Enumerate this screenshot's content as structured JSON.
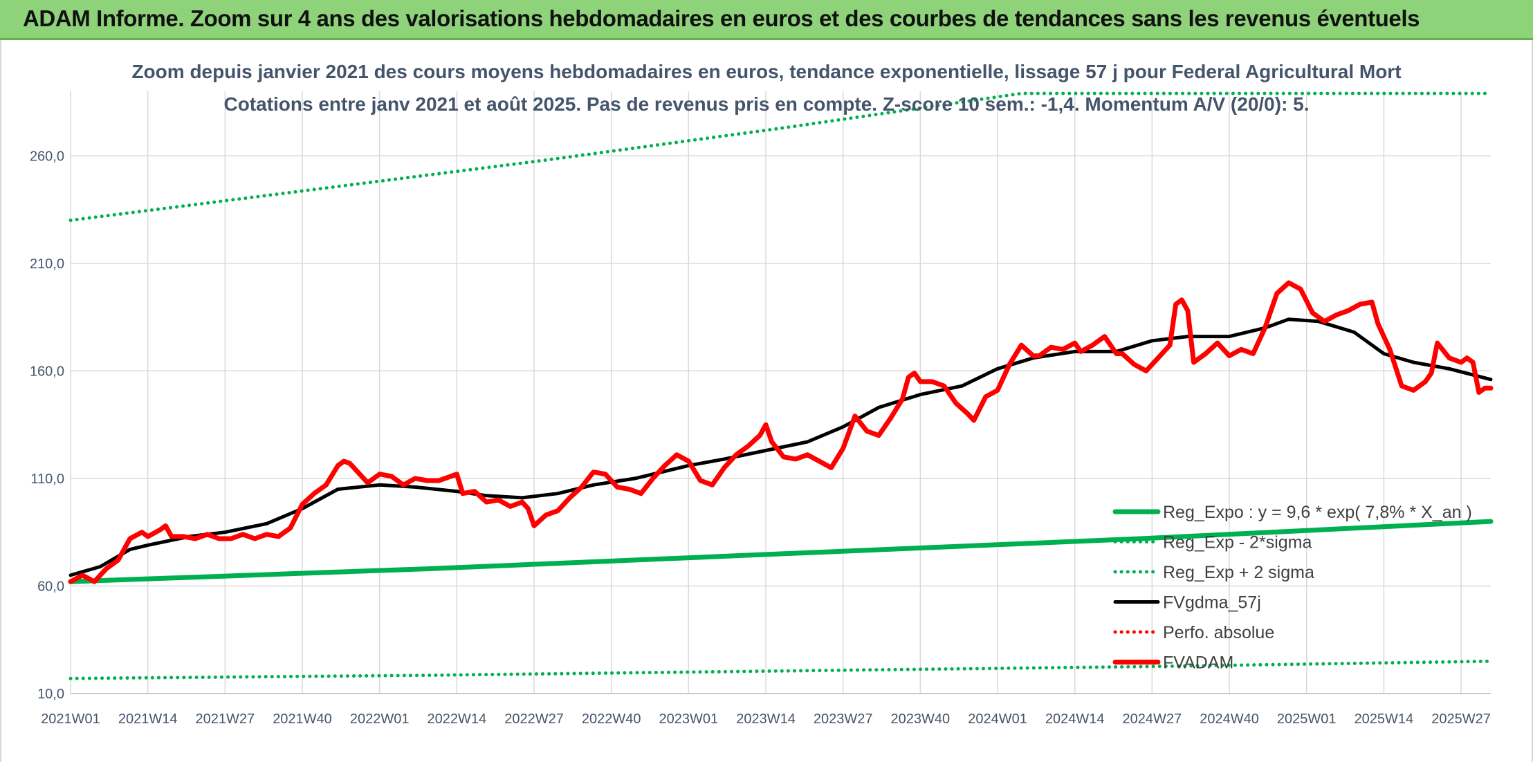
{
  "header": {
    "title": "ADAM Informe. Zoom sur 4 ans des valorisations hebdomadaires en euros et des courbes de tendances sans les revenus éventuels"
  },
  "chart_data": {
    "type": "line",
    "title": "Zoom depuis janvier 2021 des cours moyens hebdomadaires en euros, tendance exponentielle, lissage 57 j pour Federal Agricultural Mort",
    "subtitle": "Cotations entre janv 2021 et août 2025. Pas de revenus pris en compte. Z-score 10 sem.: -1,4. Momentum A/V (20/0): 5.",
    "xlabel": "",
    "ylabel": "",
    "ylim": [
      10,
      290
    ],
    "yticks": [
      "10,0",
      "60,0",
      "110,0",
      "160,0",
      "210,0",
      "260,0"
    ],
    "ytick_values": [
      10,
      60,
      110,
      160,
      210,
      260
    ],
    "xlim": [
      0,
      239
    ],
    "xticks": [
      "2021W01",
      "2021W14",
      "2021W27",
      "2021W40",
      "2022W01",
      "2022W14",
      "2022W27",
      "2022W40",
      "2023W01",
      "2023W14",
      "2023W27",
      "2023W40",
      "2024W01",
      "2024W14",
      "2024W27",
      "2024W40",
      "2025W01",
      "2025W14",
      "2025W27"
    ],
    "xtick_positions": [
      0,
      13,
      26,
      39,
      52,
      65,
      78,
      91,
      104,
      117,
      130,
      143,
      156,
      169,
      182,
      195,
      208,
      221,
      234
    ],
    "grid": true,
    "legend_position": "bottom-right",
    "series": [
      {
        "name": "Reg_Expo : y = 9,6 * exp( 7,8% *  X_an )",
        "color": "#00b050",
        "style": "solid-thick",
        "points": [
          [
            0,
            62
          ],
          [
            60,
            68
          ],
          [
            120,
            75
          ],
          [
            180,
            82
          ],
          [
            239,
            90
          ]
        ]
      },
      {
        "name": "Reg_Exp - 2*sigma",
        "color": "#00b050",
        "style": "dotted",
        "points": [
          [
            0,
            17
          ],
          [
            60,
            18.5
          ],
          [
            120,
            20.5
          ],
          [
            180,
            22.5
          ],
          [
            239,
            25
          ]
        ]
      },
      {
        "name": "Reg_Exp + 2 sigma",
        "color": "#00b050",
        "style": "dotted",
        "points": [
          [
            0,
            230
          ],
          [
            40,
            244
          ],
          [
            80,
            258
          ],
          [
            120,
            273
          ],
          [
            150,
            285
          ],
          [
            160,
            289
          ],
          [
            239,
            289
          ]
        ]
      },
      {
        "name": "FVgdma_57j",
        "color": "#000000",
        "style": "solid",
        "points": [
          [
            0,
            65
          ],
          [
            5,
            69
          ],
          [
            10,
            77
          ],
          [
            13,
            79
          ],
          [
            20,
            83
          ],
          [
            26,
            85
          ],
          [
            33,
            89
          ],
          [
            39,
            96
          ],
          [
            45,
            105
          ],
          [
            52,
            107
          ],
          [
            58,
            106
          ],
          [
            65,
            104
          ],
          [
            70,
            102
          ],
          [
            76,
            101
          ],
          [
            82,
            103
          ],
          [
            88,
            107
          ],
          [
            95,
            110
          ],
          [
            104,
            116
          ],
          [
            110,
            119
          ],
          [
            117,
            123
          ],
          [
            124,
            127
          ],
          [
            130,
            134
          ],
          [
            136,
            143
          ],
          [
            143,
            149
          ],
          [
            150,
            153
          ],
          [
            156,
            161
          ],
          [
            162,
            166
          ],
          [
            169,
            169
          ],
          [
            176,
            169
          ],
          [
            182,
            174
          ],
          [
            188,
            176
          ],
          [
            195,
            176
          ],
          [
            201,
            180
          ],
          [
            205,
            184
          ],
          [
            210,
            183
          ],
          [
            216,
            178
          ],
          [
            221,
            168
          ],
          [
            226,
            164
          ],
          [
            232,
            161
          ],
          [
            239,
            156
          ]
        ]
      },
      {
        "name": "Perfo. absolue",
        "color": "#ff0000",
        "style": "dotted",
        "points": []
      },
      {
        "name": "FVADAM",
        "color": "#ff0000",
        "style": "solid-thick",
        "points": [
          [
            0,
            62
          ],
          [
            2,
            65
          ],
          [
            4,
            62
          ],
          [
            6,
            68
          ],
          [
            8,
            72
          ],
          [
            10,
            82
          ],
          [
            12,
            85
          ],
          [
            13,
            83
          ],
          [
            15,
            86
          ],
          [
            16,
            88
          ],
          [
            17,
            83
          ],
          [
            19,
            83
          ],
          [
            21,
            82
          ],
          [
            23,
            84
          ],
          [
            25,
            82
          ],
          [
            27,
            82
          ],
          [
            29,
            84
          ],
          [
            31,
            82
          ],
          [
            33,
            84
          ],
          [
            35,
            83
          ],
          [
            37,
            87
          ],
          [
            39,
            98
          ],
          [
            41,
            103
          ],
          [
            43,
            107
          ],
          [
            45,
            116
          ],
          [
            46,
            118
          ],
          [
            47,
            117
          ],
          [
            48,
            114
          ],
          [
            50,
            108
          ],
          [
            52,
            112
          ],
          [
            54,
            111
          ],
          [
            56,
            107
          ],
          [
            58,
            110
          ],
          [
            60,
            109
          ],
          [
            62,
            109
          ],
          [
            64,
            111
          ],
          [
            65,
            112
          ],
          [
            66,
            103
          ],
          [
            68,
            104
          ],
          [
            70,
            99
          ],
          [
            72,
            100
          ],
          [
            74,
            97
          ],
          [
            76,
            99
          ],
          [
            77,
            96
          ],
          [
            78,
            88
          ],
          [
            80,
            93
          ],
          [
            82,
            95
          ],
          [
            84,
            101
          ],
          [
            86,
            106
          ],
          [
            88,
            113
          ],
          [
            90,
            112
          ],
          [
            92,
            106
          ],
          [
            94,
            105
          ],
          [
            96,
            103
          ],
          [
            98,
            110
          ],
          [
            100,
            116
          ],
          [
            102,
            121
          ],
          [
            104,
            118
          ],
          [
            106,
            109
          ],
          [
            108,
            107
          ],
          [
            110,
            115
          ],
          [
            112,
            121
          ],
          [
            114,
            125
          ],
          [
            116,
            130
          ],
          [
            117,
            135
          ],
          [
            118,
            127
          ],
          [
            120,
            120
          ],
          [
            122,
            119
          ],
          [
            124,
            121
          ],
          [
            126,
            118
          ],
          [
            128,
            115
          ],
          [
            130,
            124
          ],
          [
            132,
            139
          ],
          [
            134,
            132
          ],
          [
            136,
            130
          ],
          [
            138,
            138
          ],
          [
            140,
            147
          ],
          [
            141,
            157
          ],
          [
            142,
            159
          ],
          [
            143,
            155
          ],
          [
            145,
            155
          ],
          [
            147,
            153
          ],
          [
            149,
            145
          ],
          [
            151,
            140
          ],
          [
            152,
            137
          ],
          [
            154,
            148
          ],
          [
            156,
            151
          ],
          [
            158,
            163
          ],
          [
            160,
            172
          ],
          [
            162,
            167
          ],
          [
            163,
            167
          ],
          [
            165,
            171
          ],
          [
            167,
            170
          ],
          [
            169,
            173
          ],
          [
            170,
            169
          ],
          [
            172,
            172
          ],
          [
            174,
            176
          ],
          [
            176,
            168
          ],
          [
            177,
            168
          ],
          [
            179,
            163
          ],
          [
            181,
            160
          ],
          [
            183,
            166
          ],
          [
            185,
            172
          ],
          [
            186,
            191
          ],
          [
            187,
            193
          ],
          [
            188,
            188
          ],
          [
            189,
            164
          ],
          [
            191,
            168
          ],
          [
            193,
            173
          ],
          [
            195,
            167
          ],
          [
            197,
            170
          ],
          [
            199,
            168
          ],
          [
            201,
            180
          ],
          [
            203,
            196
          ],
          [
            205,
            201
          ],
          [
            207,
            198
          ],
          [
            209,
            187
          ],
          [
            211,
            183
          ],
          [
            213,
            186
          ],
          [
            215,
            188
          ],
          [
            217,
            191
          ],
          [
            219,
            192
          ],
          [
            220,
            182
          ],
          [
            222,
            170
          ],
          [
            224,
            153
          ],
          [
            226,
            151
          ],
          [
            228,
            155
          ],
          [
            229,
            159
          ],
          [
            230,
            173
          ],
          [
            232,
            166
          ],
          [
            234,
            164
          ],
          [
            235,
            166
          ],
          [
            236,
            164
          ],
          [
            237,
            150
          ],
          [
            238,
            152
          ],
          [
            239,
            152
          ]
        ]
      }
    ]
  }
}
